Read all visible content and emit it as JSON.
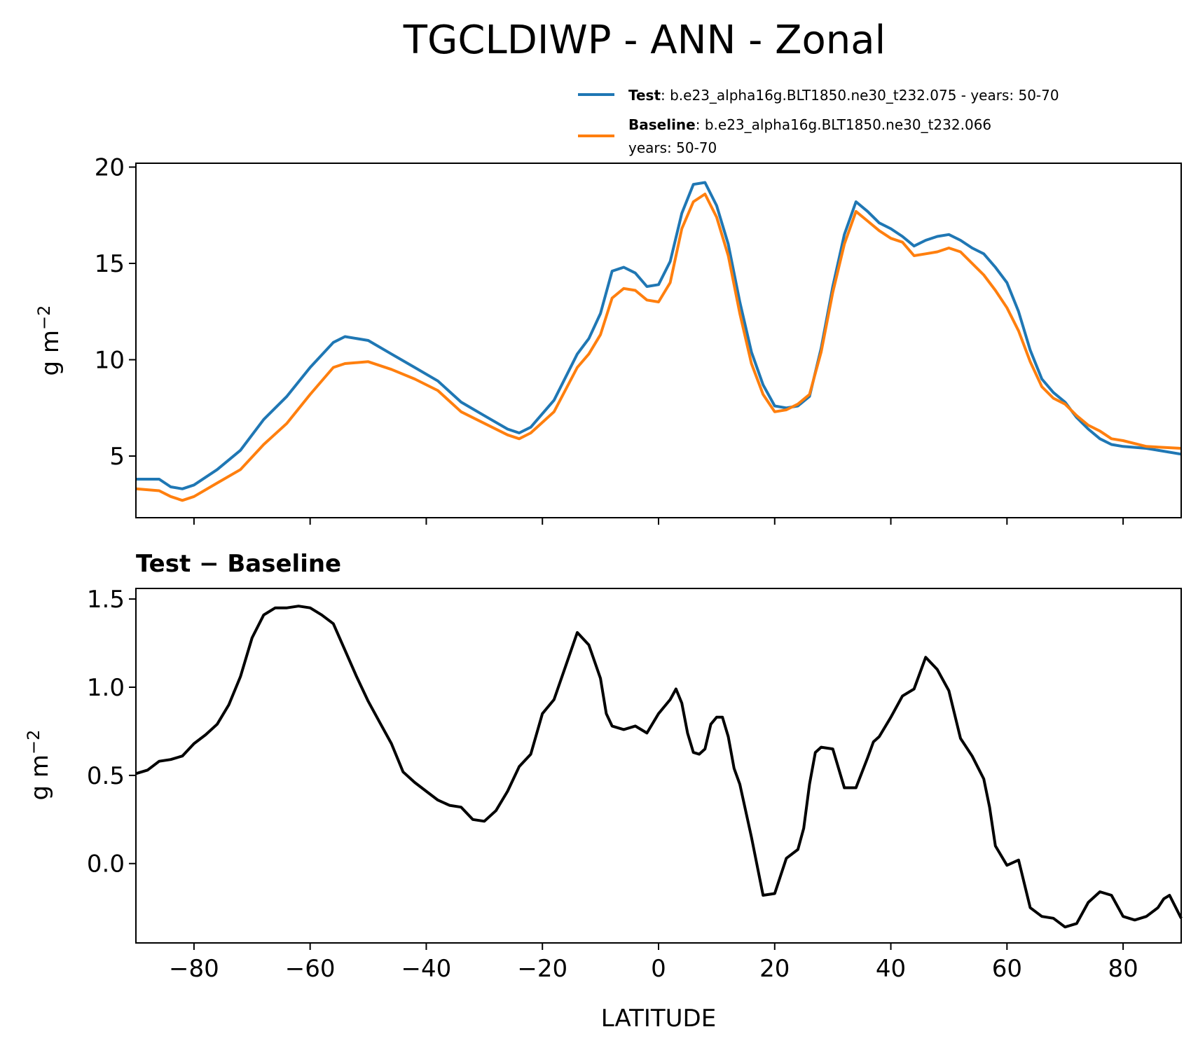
{
  "chart_data": [
    {
      "type": "line",
      "title": "TGCLDIWP - ANN - Zonal",
      "xlabel": "",
      "ylabel": "g m−2",
      "ylabel_base": "g m",
      "ylabel_exp": "−2",
      "xlim": [
        -90,
        90
      ],
      "ylim": [
        1.8,
        20.2
      ],
      "yticks": [
        5,
        10,
        15,
        20
      ],
      "xticks": [
        -80,
        -60,
        -40,
        -20,
        0,
        20,
        40,
        60,
        80
      ],
      "legend": {
        "placement": "above-top-right",
        "entries": [
          {
            "series": "Test",
            "label": "Test",
            "text": ": b.e23_alpha16g.BLT1850.ne30_t232.075 - years: 50-70",
            "text2": ""
          },
          {
            "series": "Baseline",
            "label": "Baseline",
            "text": ": b.e23_alpha16g.BLT1850.ne30_t232.066",
            "text2": "years: 50-70"
          }
        ]
      },
      "series": [
        {
          "name": "Test",
          "color": "#1f77b4",
          "x": [
            -90,
            -86,
            -84,
            -82,
            -80,
            -76,
            -72,
            -68,
            -64,
            -60,
            -56,
            -54,
            -50,
            -46,
            -42,
            -38,
            -34,
            -30,
            -26,
            -24,
            -22,
            -18,
            -14,
            -12,
            -10,
            -8,
            -6,
            -4,
            -2,
            0,
            2,
            4,
            6,
            8,
            10,
            12,
            14,
            16,
            18,
            20,
            22,
            24,
            26,
            28,
            30,
            32,
            34,
            36,
            38,
            40,
            42,
            44,
            46,
            48,
            50,
            52,
            54,
            56,
            58,
            60,
            62,
            64,
            66,
            68,
            70,
            72,
            74,
            76,
            78,
            80,
            84,
            90
          ],
          "y": [
            3.8,
            3.8,
            3.4,
            3.3,
            3.5,
            4.3,
            5.3,
            6.9,
            8.1,
            9.6,
            10.9,
            11.2,
            11.0,
            10.3,
            9.6,
            8.9,
            7.8,
            7.1,
            6.4,
            6.2,
            6.5,
            7.9,
            10.3,
            11.1,
            12.4,
            14.6,
            14.8,
            14.5,
            13.8,
            13.9,
            15.1,
            17.6,
            19.1,
            19.2,
            18.0,
            16.0,
            13.0,
            10.4,
            8.7,
            7.6,
            7.5,
            7.6,
            8.1,
            10.6,
            13.8,
            16.5,
            18.2,
            17.7,
            17.1,
            16.8,
            16.4,
            15.9,
            16.2,
            16.4,
            16.5,
            16.2,
            15.8,
            15.5,
            14.8,
            14.0,
            12.5,
            10.5,
            9.0,
            8.3,
            7.8,
            7.0,
            6.4,
            5.9,
            5.6,
            5.5,
            5.4,
            5.1
          ]
        },
        {
          "name": "Baseline",
          "color": "#ff7f0e",
          "x": [
            -90,
            -86,
            -84,
            -82,
            -80,
            -76,
            -72,
            -68,
            -64,
            -60,
            -56,
            -54,
            -50,
            -46,
            -42,
            -38,
            -34,
            -30,
            -26,
            -24,
            -22,
            -18,
            -14,
            -12,
            -10,
            -8,
            -6,
            -4,
            -2,
            0,
            2,
            4,
            6,
            8,
            10,
            12,
            14,
            16,
            18,
            20,
            22,
            24,
            26,
            28,
            30,
            32,
            34,
            36,
            38,
            40,
            42,
            44,
            46,
            48,
            50,
            52,
            54,
            56,
            58,
            60,
            62,
            64,
            66,
            68,
            70,
            72,
            74,
            76,
            78,
            80,
            84,
            90
          ],
          "y": [
            3.3,
            3.2,
            2.9,
            2.7,
            2.9,
            3.6,
            4.3,
            5.6,
            6.7,
            8.2,
            9.6,
            9.8,
            9.9,
            9.5,
            9.0,
            8.4,
            7.3,
            6.7,
            6.1,
            5.9,
            6.2,
            7.3,
            9.6,
            10.3,
            11.3,
            13.2,
            13.7,
            13.6,
            13.1,
            13.0,
            14.0,
            16.8,
            18.2,
            18.6,
            17.4,
            15.4,
            12.4,
            9.8,
            8.2,
            7.3,
            7.4,
            7.7,
            8.2,
            10.4,
            13.5,
            16.0,
            17.7,
            17.2,
            16.7,
            16.3,
            16.1,
            15.4,
            15.5,
            15.6,
            15.8,
            15.6,
            15.0,
            14.4,
            13.6,
            12.7,
            11.5,
            9.9,
            8.6,
            8.0,
            7.7,
            7.1,
            6.6,
            6.3,
            5.9,
            5.8,
            5.5,
            5.4
          ]
        }
      ]
    },
    {
      "type": "line",
      "title": "Test − Baseline",
      "xlabel": "LATITUDE",
      "ylabel": "g m−2",
      "ylabel_base": "g m",
      "ylabel_exp": "−2",
      "xlim": [
        -90,
        90
      ],
      "ylim": [
        -0.45,
        1.56
      ],
      "yticks": [
        0.0,
        0.5,
        1.0,
        1.5
      ],
      "ytick_labels": [
        "0.0",
        "0.5",
        "1.0",
        "1.5"
      ],
      "xticks": [
        -80,
        -60,
        -40,
        -20,
        0,
        20,
        40,
        60,
        80
      ],
      "xtick_labels": [
        "−80",
        "−60",
        "−40",
        "−20",
        "0",
        "20",
        "40",
        "60",
        "80"
      ],
      "series": [
        {
          "name": "Test − Baseline",
          "color": "#000000",
          "x": [
            -90,
            -88,
            -86,
            -84,
            -82,
            -80,
            -78,
            -76,
            -74,
            -72,
            -70,
            -68,
            -66,
            -64,
            -62,
            -60,
            -58,
            -56,
            -54,
            -52,
            -50,
            -48,
            -46,
            -44,
            -42,
            -40,
            -38,
            -36,
            -34,
            -32,
            -30,
            -28,
            -26,
            -24,
            -22,
            -20,
            -18,
            -16,
            -14,
            -12,
            -10,
            -9,
            -8,
            -6,
            -4,
            -2,
            0,
            2,
            3,
            4,
            5,
            6,
            7,
            8,
            9,
            10,
            11,
            12,
            13,
            14,
            16,
            18,
            20,
            22,
            24,
            25,
            26,
            27,
            28,
            30,
            32,
            34,
            36,
            37,
            38,
            40,
            42,
            44,
            46,
            48,
            50,
            52,
            54,
            56,
            57,
            58,
            60,
            62,
            64,
            66,
            68,
            70,
            72,
            74,
            76,
            78,
            80,
            82,
            84,
            86,
            87,
            88,
            90
          ],
          "y": [
            0.51,
            0.53,
            0.58,
            0.59,
            0.61,
            0.68,
            0.73,
            0.79,
            0.9,
            1.06,
            1.28,
            1.41,
            1.45,
            1.45,
            1.46,
            1.45,
            1.41,
            1.36,
            1.21,
            1.06,
            0.92,
            0.8,
            0.68,
            0.52,
            0.46,
            0.41,
            0.36,
            0.33,
            0.32,
            0.25,
            0.24,
            0.3,
            0.41,
            0.55,
            0.62,
            0.85,
            0.93,
            1.12,
            1.31,
            1.24,
            1.05,
            0.85,
            0.78,
            0.76,
            0.78,
            0.74,
            0.85,
            0.93,
            0.99,
            0.91,
            0.74,
            0.63,
            0.62,
            0.65,
            0.79,
            0.83,
            0.83,
            0.72,
            0.54,
            0.45,
            0.15,
            -0.18,
            -0.17,
            0.03,
            0.08,
            0.2,
            0.45,
            0.63,
            0.66,
            0.65,
            0.43,
            0.43,
            0.6,
            0.69,
            0.72,
            0.83,
            0.95,
            0.99,
            1.17,
            1.1,
            0.98,
            0.71,
            0.61,
            0.48,
            0.32,
            0.1,
            -0.01,
            0.02,
            -0.25,
            -0.3,
            -0.31,
            -0.36,
            -0.34,
            -0.22,
            -0.16,
            -0.18,
            -0.3,
            -0.32,
            -0.3,
            -0.25,
            -0.2,
            -0.18,
            -0.31
          ]
        }
      ]
    }
  ]
}
